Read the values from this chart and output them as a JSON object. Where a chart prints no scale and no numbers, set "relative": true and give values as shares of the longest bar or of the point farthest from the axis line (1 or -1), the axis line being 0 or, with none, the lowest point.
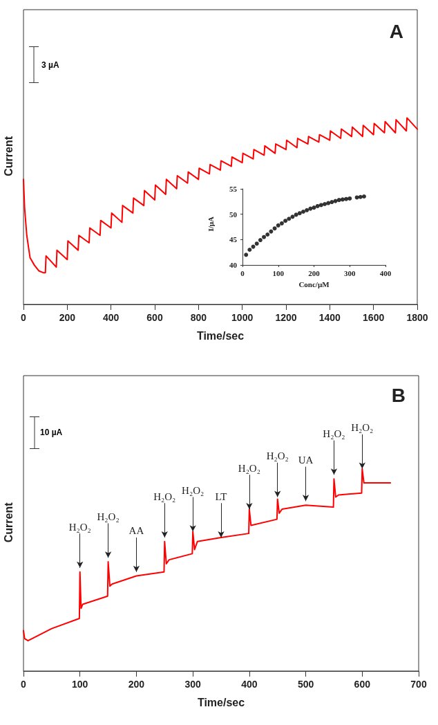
{
  "chart_data": [
    {
      "type": "line",
      "title": "A",
      "xlabel": "Time/sec",
      "ylabel": "Current",
      "relative": true,
      "tick_labels": "x",
      "marker": "none",
      "line_style": "solid",
      "color": "#ff0000",
      "xlim": [
        0,
        1800
      ],
      "xticks": [
        0,
        200,
        400,
        600,
        800,
        1000,
        1200,
        1400,
        1600,
        1800
      ],
      "x": [
        0,
        5,
        15,
        30,
        50,
        70,
        90,
        100,
        103,
        150,
        153,
        200,
        203,
        250,
        253,
        300,
        303,
        350,
        353,
        400,
        403,
        450,
        453,
        500,
        503,
        550,
        553,
        600,
        603,
        650,
        653,
        700,
        703,
        750,
        753,
        800,
        803,
        850,
        853,
        900,
        903,
        950,
        953,
        1000,
        1003,
        1050,
        1053,
        1100,
        1103,
        1150,
        1153,
        1200,
        1203,
        1250,
        1253,
        1300,
        1303,
        1350,
        1353,
        1400,
        1403,
        1450,
        1453,
        1500,
        1503,
        1550,
        1553,
        1600,
        1603,
        1650,
        1653,
        1700,
        1703,
        1750,
        1753,
        1800
      ],
      "values": [
        0.67,
        0.52,
        0.37,
        0.25,
        0.21,
        0.18,
        0.17,
        0.17,
        0.26,
        0.2,
        0.29,
        0.24,
        0.34,
        0.29,
        0.37,
        0.33,
        0.41,
        0.37,
        0.45,
        0.41,
        0.49,
        0.44,
        0.53,
        0.49,
        0.57,
        0.53,
        0.61,
        0.56,
        0.64,
        0.59,
        0.67,
        0.62,
        0.69,
        0.65,
        0.71,
        0.67,
        0.73,
        0.7,
        0.75,
        0.72,
        0.77,
        0.74,
        0.79,
        0.76,
        0.81,
        0.78,
        0.83,
        0.8,
        0.85,
        0.81,
        0.86,
        0.83,
        0.88,
        0.84,
        0.89,
        0.86,
        0.9,
        0.87,
        0.91,
        0.88,
        0.93,
        0.89,
        0.94,
        0.9,
        0.95,
        0.9,
        0.96,
        0.91,
        0.97,
        0.92,
        0.98,
        0.92,
        0.99,
        0.93,
        1,
        0.94
      ],
      "annotations": [
        "3 µA"
      ]
    },
    {
      "type": "scatter",
      "xlabel": "Conc/µM",
      "ylabel": "I/µA",
      "marker": "circle",
      "line_style": "solid",
      "color": "#000000",
      "xlim": [
        0,
        400
      ],
      "xticks": [
        0,
        100,
        200,
        300,
        400
      ],
      "ylim": [
        40,
        55
      ],
      "yticks": [
        40,
        45,
        50,
        55
      ],
      "x": [
        10,
        20,
        30,
        40,
        50,
        60,
        70,
        80,
        90,
        100,
        110,
        120,
        130,
        140,
        150,
        160,
        170,
        180,
        190,
        200,
        210,
        220,
        230,
        240,
        250,
        260,
        270,
        280,
        290,
        300,
        320,
        330,
        340
      ],
      "values": [
        42.0,
        43.0,
        43.6,
        44.2,
        44.9,
        45.5,
        46.0,
        46.6,
        47.2,
        47.8,
        48.2,
        48.7,
        49.1,
        49.5,
        49.9,
        50.2,
        50.5,
        50.8,
        51.1,
        51.3,
        51.6,
        51.8,
        52.0,
        52.2,
        52.4,
        52.6,
        52.8,
        52.9,
        53.0,
        53.1,
        53.3,
        53.4,
        53.5
      ]
    },
    {
      "type": "line",
      "title": "B",
      "xlabel": "Time/sec",
      "ylabel": "Current",
      "relative": true,
      "tick_labels": "x",
      "marker": "none",
      "line_style": "solid",
      "color": "#ff0000",
      "xlim": [
        0,
        700
      ],
      "xticks": [
        0,
        100,
        200,
        300,
        400,
        500,
        600,
        700
      ],
      "x": [
        0,
        2,
        8,
        50,
        99,
        100,
        102,
        105,
        149,
        150,
        153,
        157,
        200,
        249,
        250,
        253,
        258,
        299,
        300,
        303,
        308,
        350,
        399,
        400,
        403,
        449,
        450,
        453,
        458,
        500,
        549,
        550,
        553,
        558,
        599,
        600,
        603,
        650
      ],
      "values": [
        0.2,
        0.16,
        0.15,
        0.21,
        0.26,
        0.49,
        0.31,
        0.33,
        0.37,
        0.54,
        0.42,
        0.43,
        0.47,
        0.49,
        0.64,
        0.53,
        0.55,
        0.58,
        0.69,
        0.6,
        0.64,
        0.66,
        0.68,
        0.8,
        0.72,
        0.75,
        0.85,
        0.78,
        0.8,
        0.82,
        0.81,
        0.95,
        0.86,
        0.87,
        0.88,
        1,
        0.93,
        0.93
      ],
      "annotations": [
        "10 µA",
        {
          "text": "H₂O₂",
          "x": 100,
          "y": 0.51
        },
        {
          "text": "H₂O₂",
          "x": 150,
          "y": 0.56
        },
        {
          "text": "AA",
          "x": 200,
          "y": 0.49
        },
        {
          "text": "H₂O₂",
          "x": 250,
          "y": 0.66
        },
        {
          "text": "H₂O₂",
          "x": 300,
          "y": 0.69
        },
        {
          "text": "LT",
          "x": 350,
          "y": 0.66
        },
        {
          "text": "H₂O₂",
          "x": 400,
          "y": 0.8
        },
        {
          "text": "H₂O₂",
          "x": 450,
          "y": 0.86
        },
        {
          "text": "UA",
          "x": 500,
          "y": 0.84
        },
        {
          "text": "H₂O₂",
          "x": 550,
          "y": 0.97
        },
        {
          "text": "H₂O₂",
          "x": 600,
          "y": 1
        }
      ]
    }
  ]
}
